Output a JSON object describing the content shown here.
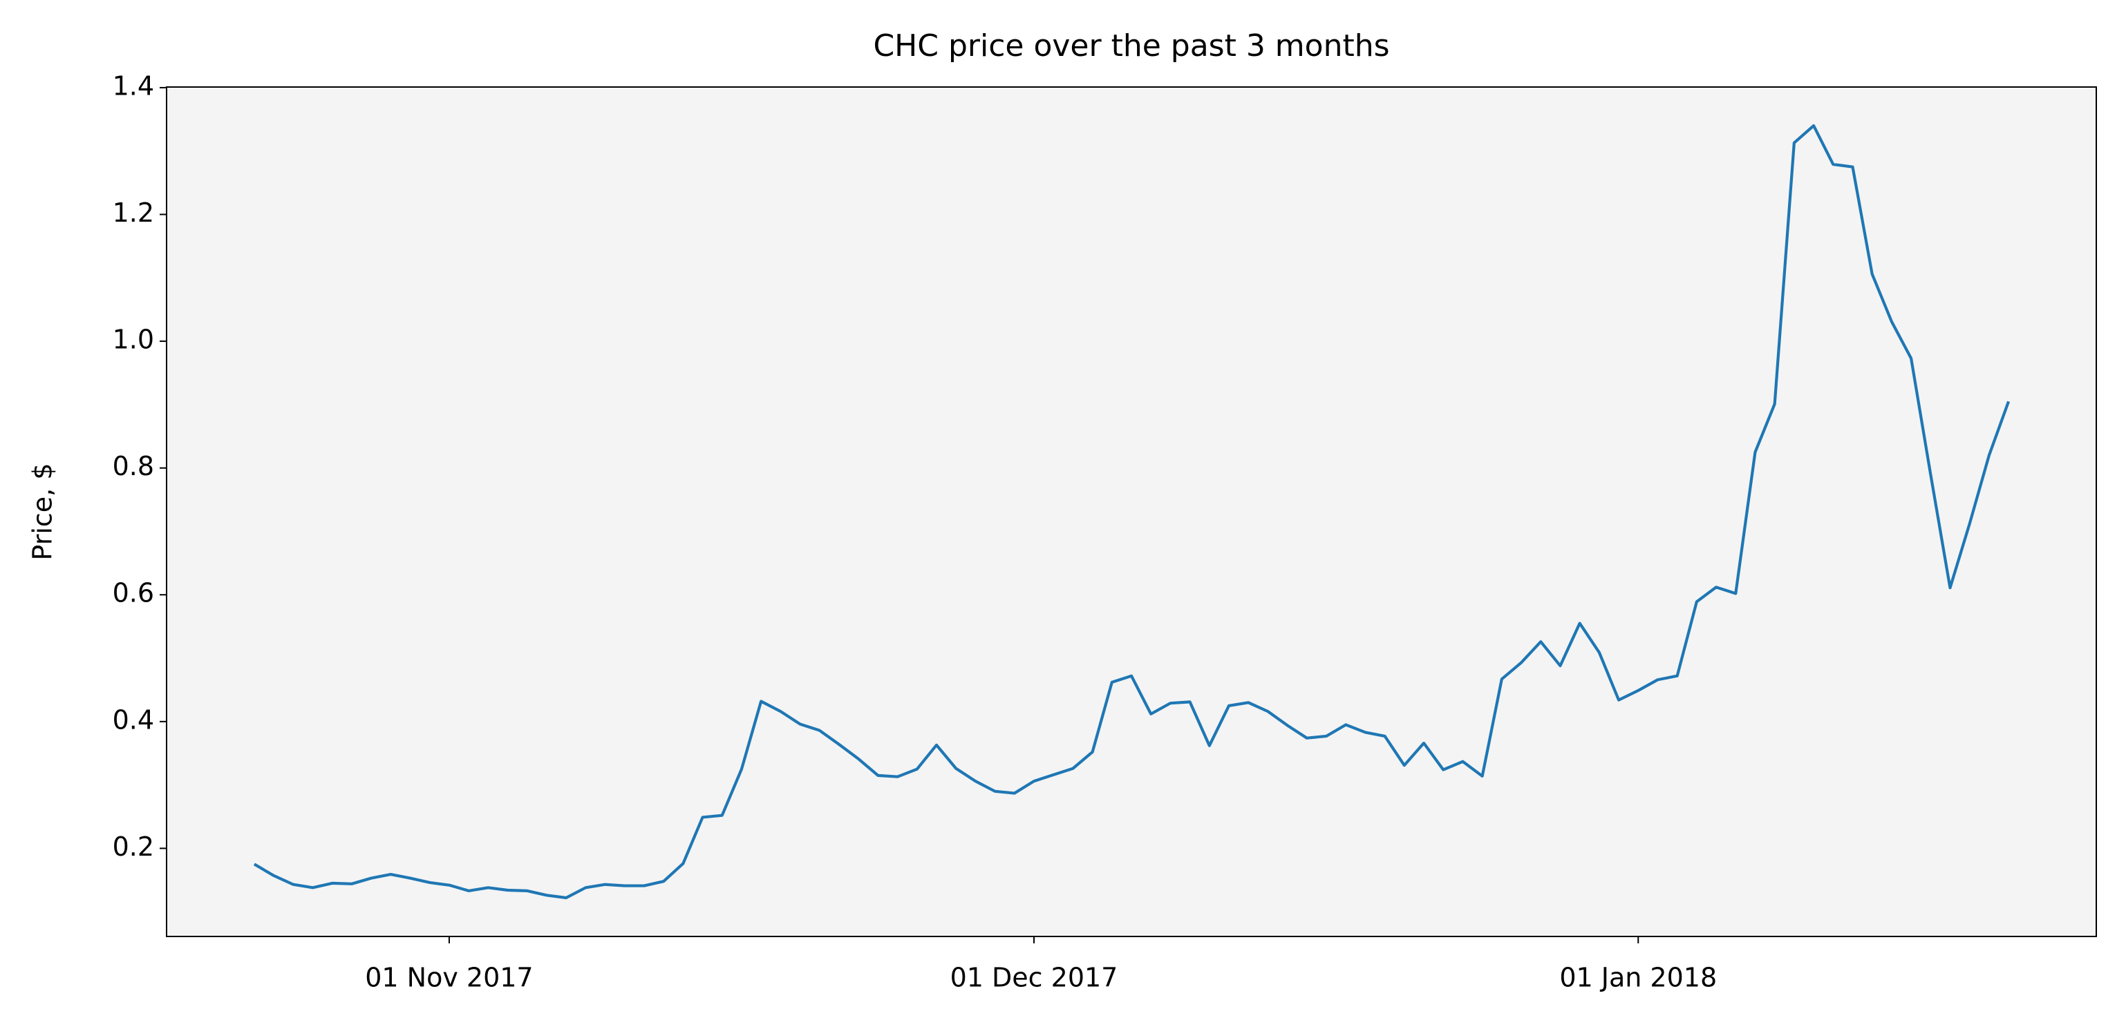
{
  "chart_data": {
    "type": "line",
    "title": "CHC price over the past 3 months",
    "y_label": "Price, $",
    "x": [
      "2017-10-22",
      "2017-10-23",
      "2017-10-24",
      "2017-10-25",
      "2017-10-26",
      "2017-10-27",
      "2017-10-28",
      "2017-10-29",
      "2017-10-30",
      "2017-10-31",
      "2017-11-01",
      "2017-11-02",
      "2017-11-03",
      "2017-11-04",
      "2017-11-05",
      "2017-11-06",
      "2017-11-07",
      "2017-11-08",
      "2017-11-09",
      "2017-11-10",
      "2017-11-11",
      "2017-11-12",
      "2017-11-13",
      "2017-11-14",
      "2017-11-15",
      "2017-11-16",
      "2017-11-17",
      "2017-11-18",
      "2017-11-19",
      "2017-11-20",
      "2017-11-21",
      "2017-11-22",
      "2017-11-23",
      "2017-11-24",
      "2017-11-25",
      "2017-11-26",
      "2017-11-27",
      "2017-11-28",
      "2017-11-29",
      "2017-11-30",
      "2017-12-01",
      "2017-12-02",
      "2017-12-03",
      "2017-12-04",
      "2017-12-05",
      "2017-12-06",
      "2017-12-07",
      "2017-12-08",
      "2017-12-09",
      "2017-12-10",
      "2017-12-11",
      "2017-12-12",
      "2017-12-13",
      "2017-12-14",
      "2017-12-15",
      "2017-12-16",
      "2017-12-17",
      "2017-12-18",
      "2017-12-19",
      "2017-12-20",
      "2017-12-21",
      "2017-12-22",
      "2017-12-23",
      "2017-12-24",
      "2017-12-25",
      "2017-12-26",
      "2017-12-27",
      "2017-12-28",
      "2017-12-29",
      "2017-12-30",
      "2017-12-31",
      "2018-01-01",
      "2018-01-02",
      "2018-01-03",
      "2018-01-04",
      "2018-01-05",
      "2018-01-06",
      "2018-01-07",
      "2018-01-08",
      "2018-01-09",
      "2018-01-10",
      "2018-01-11",
      "2018-01-12",
      "2018-01-13",
      "2018-01-14",
      "2018-01-15",
      "2018-01-16",
      "2018-01-17",
      "2018-01-18",
      "2018-01-19",
      "2018-01-20"
    ],
    "series": [
      {
        "name": "CHC",
        "color": "#1f77b4",
        "values": [
          0.175,
          0.157,
          0.143,
          0.138,
          0.145,
          0.144,
          0.153,
          0.159,
          0.153,
          0.146,
          0.142,
          0.133,
          0.138,
          0.134,
          0.133,
          0.126,
          0.122,
          0.138,
          0.143,
          0.141,
          0.141,
          0.148,
          0.176,
          0.249,
          0.252,
          0.325,
          0.432,
          0.416,
          0.396,
          0.386,
          0.364,
          0.341,
          0.315,
          0.313,
          0.325,
          0.363,
          0.326,
          0.306,
          0.29,
          0.287,
          0.306,
          0.316,
          0.326,
          0.352,
          0.462,
          0.472,
          0.412,
          0.429,
          0.431,
          0.362,
          0.425,
          0.43,
          0.416,
          0.394,
          0.374,
          0.377,
          0.395,
          0.383,
          0.377,
          0.331,
          0.366,
          0.324,
          0.337,
          0.314,
          0.467,
          0.493,
          0.526,
          0.488,
          0.555,
          0.509,
          0.434,
          0.449,
          0.466,
          0.472,
          0.589,
          0.612,
          0.602,
          0.825,
          0.901,
          1.313,
          1.34,
          1.279,
          1.275,
          1.106,
          1.031,
          0.973,
          0.79,
          0.611,
          0.712,
          0.82,
          0.905
        ]
      }
    ],
    "xlim": [
      "2017-10-17T12:00",
      "2018-01-24T12:00"
    ],
    "xticks": [
      {
        "value": "2017-11-01",
        "label": "01 Nov 2017"
      },
      {
        "value": "2017-12-01",
        "label": "01 Dec 2017"
      },
      {
        "value": "2018-01-01",
        "label": "01 Jan 2018"
      }
    ],
    "ylim": [
      0.061,
      1.401
    ],
    "yticks": [
      0.2,
      0.4,
      0.6,
      0.8,
      {
        "value": 1,
        "label": "1.0"
      },
      1.2,
      1.4
    ],
    "background": "#f4f4f4"
  }
}
